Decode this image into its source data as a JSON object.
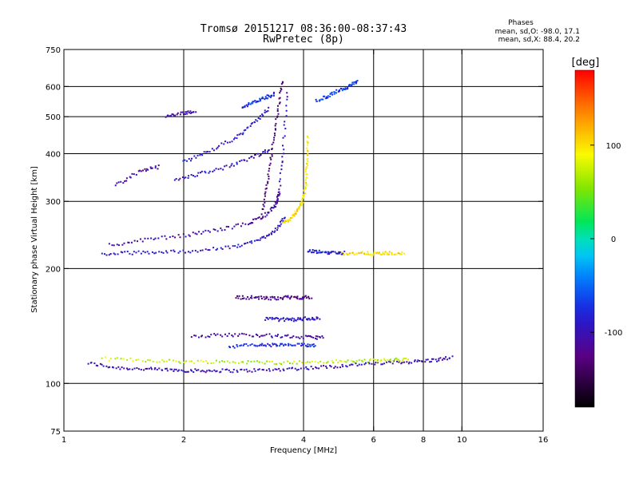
{
  "chart_data": {
    "type": "scatter",
    "title": "Tromsø 20151217 08:36:00-08:37:43",
    "subtitle": "RwPretec (8p)",
    "xlabel": "Frequency [MHz]",
    "ylabel": "Stationary phase Virtual Height [km]",
    "x_scale": "log",
    "y_scale": "log",
    "xlim": [
      1,
      16
    ],
    "ylim": [
      75,
      750
    ],
    "x_ticks": [
      1,
      2,
      4,
      6,
      8,
      10,
      16
    ],
    "x_grid": [
      2,
      4,
      6,
      8,
      10
    ],
    "y_ticks": [
      75,
      100,
      200,
      300,
      400,
      500,
      600,
      750
    ],
    "y_grid": [
      100,
      200,
      300,
      400,
      500,
      600
    ],
    "grid": true,
    "stats": {
      "header": "Phases",
      "line1": "mean, sd,O: -98.0, 17.1",
      "line2": "mean, sd,X:  88.4, 20.2"
    },
    "colorbar": {
      "label": "[deg]",
      "range": [
        -180,
        180
      ],
      "ticks": [
        100,
        0,
        -100
      ]
    },
    "traces": [
      {
        "freq": [
          1.15,
          1.35,
          1.6,
          1.85,
          2.1,
          2.4,
          2.8,
          3.3,
          3.9,
          4.6,
          5.4,
          6.4,
          7.5,
          8.5,
          9.5
        ],
        "height": [
          113,
          110,
          109,
          108.5,
          108,
          108,
          108,
          108.5,
          109.5,
          110.5,
          112,
          113,
          114,
          115,
          117
        ],
        "phase": -100
      },
      {
        "freq": [
          1.25,
          1.6,
          2.0,
          2.5,
          3.1,
          3.8,
          4.7,
          5.6,
          6.5,
          7.4
        ],
        "height": [
          116,
          115,
          114,
          114,
          113.5,
          113.5,
          114,
          114.5,
          115,
          116
        ],
        "phase": 70
      },
      {
        "freq": [
          2.6,
          3.0,
          3.3,
          3.6,
          4.0,
          4.3
        ],
        "height": [
          125,
          126,
          126,
          126,
          126,
          126
        ],
        "phase": -75
      },
      {
        "freq": [
          2.1,
          2.5,
          3.0,
          3.5,
          4.1,
          4.5
        ],
        "height": [
          133,
          134,
          134,
          133,
          132,
          132
        ],
        "phase": -110
      },
      {
        "freq": [
          3.2,
          3.5,
          3.8,
          4.1,
          4.4
        ],
        "height": [
          148,
          147,
          147,
          148,
          148
        ],
        "phase": -90
      },
      {
        "freq": [
          2.7,
          3.0,
          3.3,
          3.6,
          3.9,
          4.2
        ],
        "height": [
          168,
          168,
          167,
          168,
          168,
          168
        ],
        "phase": -120
      },
      {
        "freq": [
          1.25,
          1.5,
          1.8,
          2.2,
          2.7,
          3.1,
          3.4,
          3.6
        ],
        "height": [
          218,
          220,
          221,
          223,
          228,
          238,
          252,
          272
        ],
        "phase": -90
      },
      {
        "freq": [
          1.3,
          1.6,
          2.0,
          2.4,
          2.9,
          3.2,
          3.4,
          3.5
        ],
        "height": [
          230,
          238,
          244,
          252,
          262,
          276,
          293,
          318
        ],
        "phase": -110
      },
      {
        "freq": [
          3.55,
          3.7,
          3.85,
          3.98,
          4.05,
          4.08,
          4.1
        ],
        "height": [
          262,
          270,
          283,
          300,
          330,
          380,
          450
        ],
        "phase": 100
      },
      {
        "freq": [
          1.9,
          2.2,
          2.6,
          3.0,
          3.3
        ],
        "height": [
          340,
          355,
          370,
          392,
          410
        ],
        "phase": -95
      },
      {
        "freq": [
          2.0,
          2.3,
          2.7,
          3.0,
          3.3
        ],
        "height": [
          380,
          405,
          440,
          480,
          530
        ],
        "phase": -90
      },
      {
        "freq": [
          2.8,
          3.0,
          3.2,
          3.4
        ],
        "height": [
          530,
          545,
          560,
          575
        ],
        "phase": -70
      },
      {
        "freq": [
          4.3,
          4.6,
          4.9,
          5.2,
          5.5
        ],
        "height": [
          550,
          565,
          585,
          600,
          620
        ],
        "phase": -70
      },
      {
        "freq": [
          4.1,
          4.4,
          4.7,
          5.1
        ],
        "height": [
          222,
          221,
          220,
          220
        ],
        "phase": -85
      },
      {
        "freq": [
          5.0,
          5.5,
          6.0,
          6.5,
          7.2
        ],
        "height": [
          219,
          219,
          219,
          219,
          219
        ],
        "phase": 100
      },
      {
        "freq": [
          1.35,
          1.55,
          1.75
        ],
        "height": [
          330,
          360,
          370
        ],
        "phase": -110
      },
      {
        "freq": [
          1.8,
          2.0,
          2.15
        ],
        "height": [
          500,
          510,
          520
        ],
        "phase": -110
      },
      {
        "freq": [
          3.15,
          3.25,
          3.35,
          3.45,
          3.55
        ],
        "height": [
          280,
          340,
          420,
          520,
          630
        ],
        "phase": -135
      },
      {
        "freq": [
          3.45,
          3.55,
          3.65
        ],
        "height": [
          300,
          400,
          600
        ],
        "phase": -100
      }
    ]
  }
}
